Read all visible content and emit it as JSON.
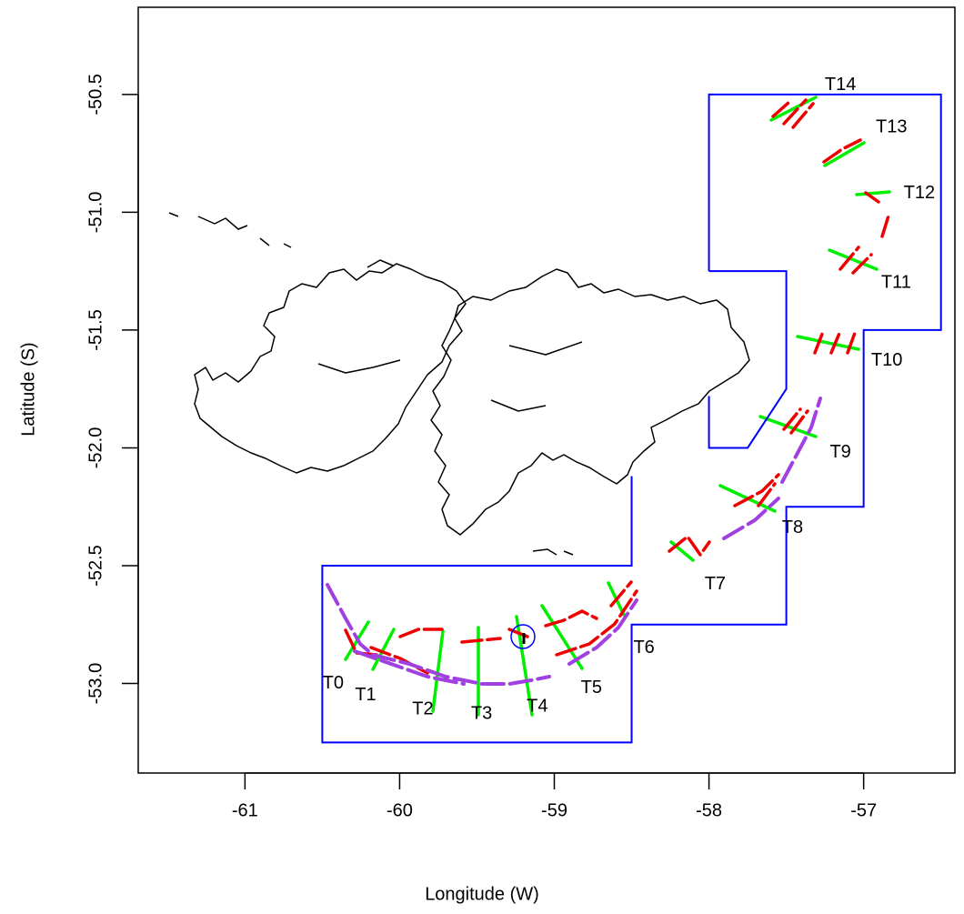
{
  "chart_data": {
    "type": "map",
    "xlabel": "Longitude (W)",
    "ylabel": "Latitude (S)",
    "xlim": [
      -61.69,
      -56.41
    ],
    "ylim": [
      -53.38,
      -50.13
    ],
    "xticks": [
      -61,
      -60,
      -59,
      -58,
      -57
    ],
    "yticks": [
      -50.5,
      {
        "value": -51,
        "label": "-51.0"
      },
      -51.5,
      {
        "value": -52,
        "label": "-52.0"
      },
      -52.5,
      {
        "value": -53,
        "label": "-53.0"
      }
    ],
    "boundary": {
      "color": "#0000ff",
      "lines": [
        {
          "lon": [
            -58,
            -58,
            -56.5,
            -56.5,
            -57,
            -57,
            -57.5,
            -57.5,
            -58.5,
            -58.5,
            -60.5,
            -60.5,
            -58.5,
            -58.5
          ],
          "lat": [
            -51.25,
            -50.5,
            -50.5,
            -51.5,
            -51.5,
            -52.25,
            -52.25,
            -52.75,
            -52.75,
            -53.25,
            -53.25,
            -52.5,
            -52.5,
            -52.12
          ]
        },
        {
          "lon": [
            -58,
            -57.5,
            -57.5,
            -57.75,
            -58,
            -58
          ],
          "lat": [
            -51.25,
            -51.25,
            -51.75,
            -52,
            -52,
            -51.78
          ]
        }
      ]
    },
    "transects": {
      "names": [
        "T0",
        "T1",
        "T2",
        "T3",
        "T4",
        "T5",
        "T6",
        "T7",
        "T8",
        "T9",
        "T10",
        "T11",
        "T12",
        "T13",
        "T14"
      ],
      "lon": [
        -60.43,
        -60.22,
        -59.85,
        -59.47,
        -59.11,
        -58.76,
        -58.42,
        -57.96,
        -57.46,
        -57.15,
        -56.85,
        -56.79,
        -56.64,
        -56.82,
        -57.15
      ],
      "lat": [
        -53.0,
        -53.05,
        -53.11,
        -53.13,
        -53.1,
        -53.02,
        -52.85,
        -52.58,
        -52.34,
        -52.02,
        -51.63,
        -51.3,
        -50.92,
        -50.64,
        -50.46
      ]
    }
  }
}
